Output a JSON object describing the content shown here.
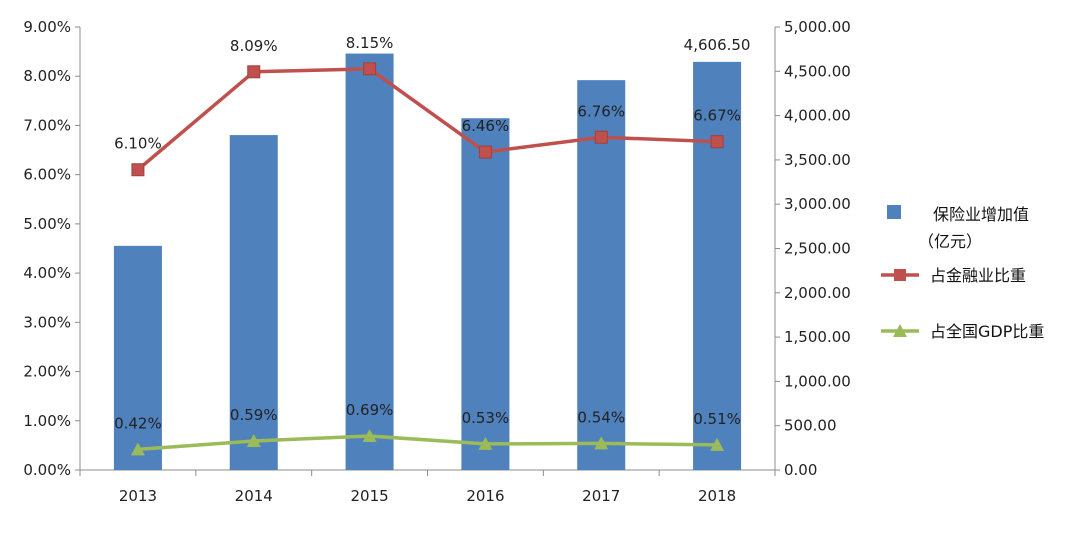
{
  "chart_data": {
    "type": "bar",
    "categories": [
      "2013",
      "2014",
      "2015",
      "2016",
      "2017",
      "2018"
    ],
    "series": [
      {
        "name": "保险业增加值（亿元）",
        "legend_lines": [
          "保险业增加值",
          "（亿元）"
        ],
        "chart_type": "bar",
        "axis": "right",
        "values": [
          2530,
          3780,
          4700,
          3970,
          4400,
          4606.5
        ],
        "data_labels": [
          "",
          "",
          "",
          "",
          "",
          "4,606.50"
        ],
        "color": "#4F81BD"
      },
      {
        "name": "占金融业比重",
        "chart_type": "line",
        "axis": "left",
        "values": [
          6.1,
          8.09,
          8.15,
          6.46,
          6.76,
          6.67
        ],
        "data_labels": [
          "6.10%",
          "8.09%",
          "8.15%",
          "6.46%",
          "6.76%",
          "6.67%"
        ],
        "color": "#C0504D",
        "marker": "square"
      },
      {
        "name": "占全国GDP比重",
        "chart_type": "line",
        "axis": "left",
        "values": [
          0.42,
          0.59,
          0.69,
          0.53,
          0.54,
          0.51
        ],
        "data_labels": [
          "0.42%",
          "0.59%",
          "0.69%",
          "0.53%",
          "0.54%",
          "0.51%"
        ],
        "color": "#9BBB59",
        "marker": "triangle"
      }
    ],
    "y_left": {
      "ticks": [
        0,
        1,
        2,
        3,
        4,
        5,
        6,
        7,
        8,
        9
      ],
      "tick_labels": [
        "0.00%",
        "1.00%",
        "2.00%",
        "3.00%",
        "4.00%",
        "5.00%",
        "6.00%",
        "7.00%",
        "8.00%",
        "9.00%"
      ],
      "ylim": [
        0,
        9
      ]
    },
    "y_right": {
      "ticks": [
        0,
        500,
        1000,
        1500,
        2000,
        2500,
        3000,
        3500,
        4000,
        4500,
        5000
      ],
      "tick_labels": [
        "0.00",
        "500.00",
        "1,000.00",
        "1,500.00",
        "2,000.00",
        "2,500.00",
        "3,000.00",
        "3,500.00",
        "4,000.00",
        "4,500.00",
        "5,000.00"
      ],
      "ylim": [
        0,
        5000
      ]
    },
    "title": "",
    "xlabel": "",
    "ylabel": "",
    "grid": false,
    "legend_position": "right"
  }
}
